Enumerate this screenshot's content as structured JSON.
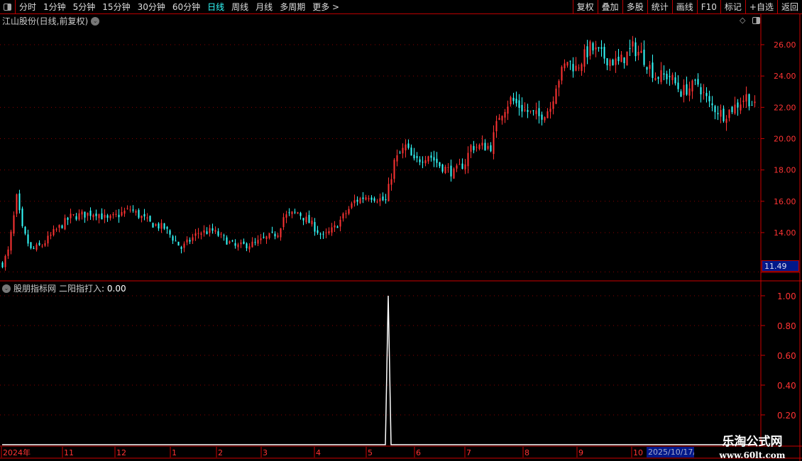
{
  "toolbar": {
    "periods": [
      "分时",
      "1分钟",
      "5分钟",
      "15分钟",
      "30分钟",
      "60分钟",
      "日线",
      "周线",
      "月线",
      "多周期",
      "更多 >"
    ],
    "active": "日线",
    "right_buttons": [
      "复权",
      "叠加",
      "多股",
      "统计",
      "画线",
      "F10",
      "标记",
      "+自选",
      "返回"
    ]
  },
  "main": {
    "title": "江山股份(日线,前复权)",
    "last_price_label": "11.49"
  },
  "indicator": {
    "source": "股朋指标网",
    "name": "二阳指打入",
    "value": ": 0.00"
  },
  "axis": {
    "months": [
      "2024年",
      "11",
      "12",
      "1",
      "2",
      "3",
      "4",
      "5",
      "6",
      "7",
      "8",
      "9",
      "10"
    ],
    "cursor_date": "2025/10/17/"
  },
  "watermark": {
    "name": "乐淘公式网",
    "url": "www.60lt.com"
  },
  "colors": {
    "up": "#ff3333",
    "down": "#33ffff",
    "grid": "#8b0000",
    "axis": "#cc0000",
    "indicator_line": "#ffffff",
    "highlight_box": "#00188a"
  },
  "chart_data": [
    {
      "type": "candlestick",
      "yticks": [
        "14.00",
        "16.00",
        "18.00",
        "20.00",
        "22.00",
        "24.00",
        "26.00"
      ],
      "ylim": [
        11.3,
        27.2
      ],
      "close_keypoints_by_day": [
        [
          0,
          12.0
        ],
        [
          2,
          12.8
        ],
        [
          4,
          15.0
        ],
        [
          5,
          16.2
        ],
        [
          7,
          14.2
        ],
        [
          10,
          12.9
        ],
        [
          14,
          13.2
        ],
        [
          18,
          14.0
        ],
        [
          24,
          15.0
        ],
        [
          33,
          15.3
        ],
        [
          37,
          14.8
        ],
        [
          45,
          15.5
        ],
        [
          52,
          14.6
        ],
        [
          57,
          14.3
        ],
        [
          63,
          13.0
        ],
        [
          69,
          14.0
        ],
        [
          74,
          14.1
        ],
        [
          82,
          13.1
        ],
        [
          89,
          13.3
        ],
        [
          97,
          14.0
        ],
        [
          99,
          15.0
        ],
        [
          104,
          15.3
        ],
        [
          109,
          14.5
        ],
        [
          113,
          13.7
        ],
        [
          117,
          14.3
        ],
        [
          122,
          15.5
        ],
        [
          124,
          16.0
        ],
        [
          129,
          16.4
        ],
        [
          135,
          16.0
        ],
        [
          138,
          18.5
        ],
        [
          142,
          19.5
        ],
        [
          145,
          18.5
        ],
        [
          150,
          19.0
        ],
        [
          154,
          18.3
        ],
        [
          159,
          17.8
        ],
        [
          163,
          18.5
        ],
        [
          165,
          19.5
        ],
        [
          172,
          19.5
        ],
        [
          175,
          21.5
        ],
        [
          179,
          22.5
        ],
        [
          184,
          21.8
        ],
        [
          189,
          21.4
        ],
        [
          193,
          22.0
        ],
        [
          195,
          23.5
        ],
        [
          199,
          25.0
        ],
        [
          202,
          24.5
        ],
        [
          207,
          25.8
        ],
        [
          212,
          25.2
        ],
        [
          217,
          24.8
        ],
        [
          222,
          25.8
        ],
        [
          225,
          25.4
        ],
        [
          230,
          24.0
        ],
        [
          235,
          24.0
        ],
        [
          239,
          23.0
        ],
        [
          245,
          23.5
        ],
        [
          249,
          22.2
        ],
        [
          254,
          21.5
        ],
        [
          259,
          22.2
        ],
        [
          262,
          22.7
        ],
        [
          265,
          22.0
        ]
      ]
    },
    {
      "type": "line",
      "name": "二阳指打入",
      "yticks": [
        "0.20",
        "0.40",
        "0.60",
        "0.80",
        "1.00"
      ],
      "ylim": [
        0,
        1.05
      ],
      "signal_days": [
        136
      ],
      "baseline": 0
    }
  ]
}
